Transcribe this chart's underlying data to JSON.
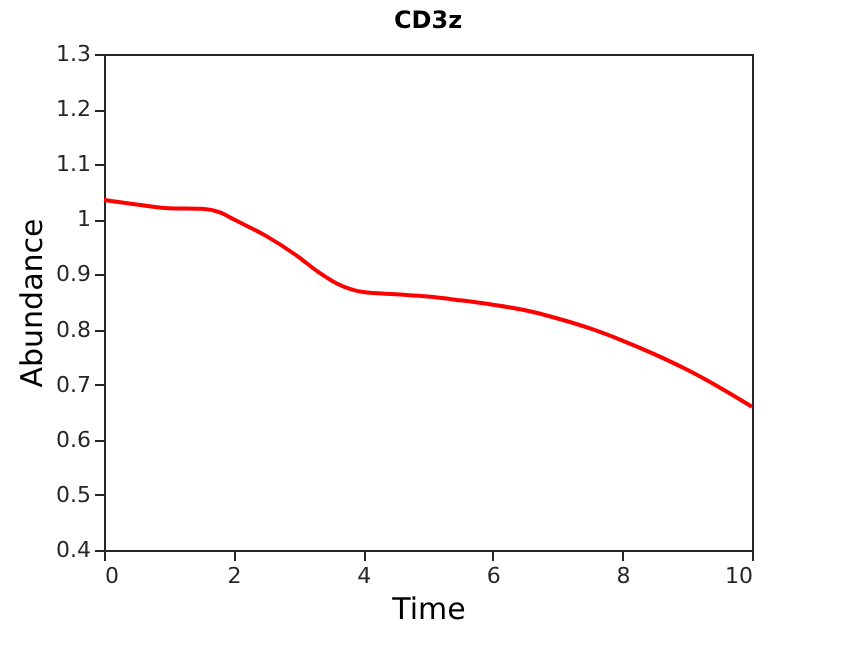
{
  "chart_data": {
    "type": "line",
    "title": "CD3z",
    "xlabel": "Time",
    "ylabel": "Abundance",
    "x": [
      0,
      0.5,
      1,
      1.5,
      1.8,
      2,
      2.5,
      3,
      3.3,
      3.6,
      4,
      4.5,
      5,
      5.5,
      6,
      6.5,
      7,
      7.5,
      8,
      8.5,
      9,
      9.5,
      10
    ],
    "series": [
      {
        "color": "#ff0000",
        "values": [
          1.035,
          1.027,
          1.02,
          1.019,
          1.012,
          1.0,
          0.97,
          0.932,
          0.905,
          0.883,
          0.868,
          0.864,
          0.86,
          0.853,
          0.845,
          0.835,
          0.82,
          0.802,
          0.78,
          0.755,
          0.727,
          0.695,
          0.66
        ]
      }
    ],
    "xlim": [
      0,
      10
    ],
    "xticks": [
      0,
      2,
      4,
      6,
      8,
      10
    ],
    "ylim": [
      0.4,
      1.3
    ],
    "yticks": [
      0.4,
      0.5,
      0.6,
      0.7,
      0.8,
      0.9,
      1,
      1.1,
      1.2,
      1.3
    ],
    "grid": false,
    "marker": "none",
    "line_style": "solid"
  }
}
